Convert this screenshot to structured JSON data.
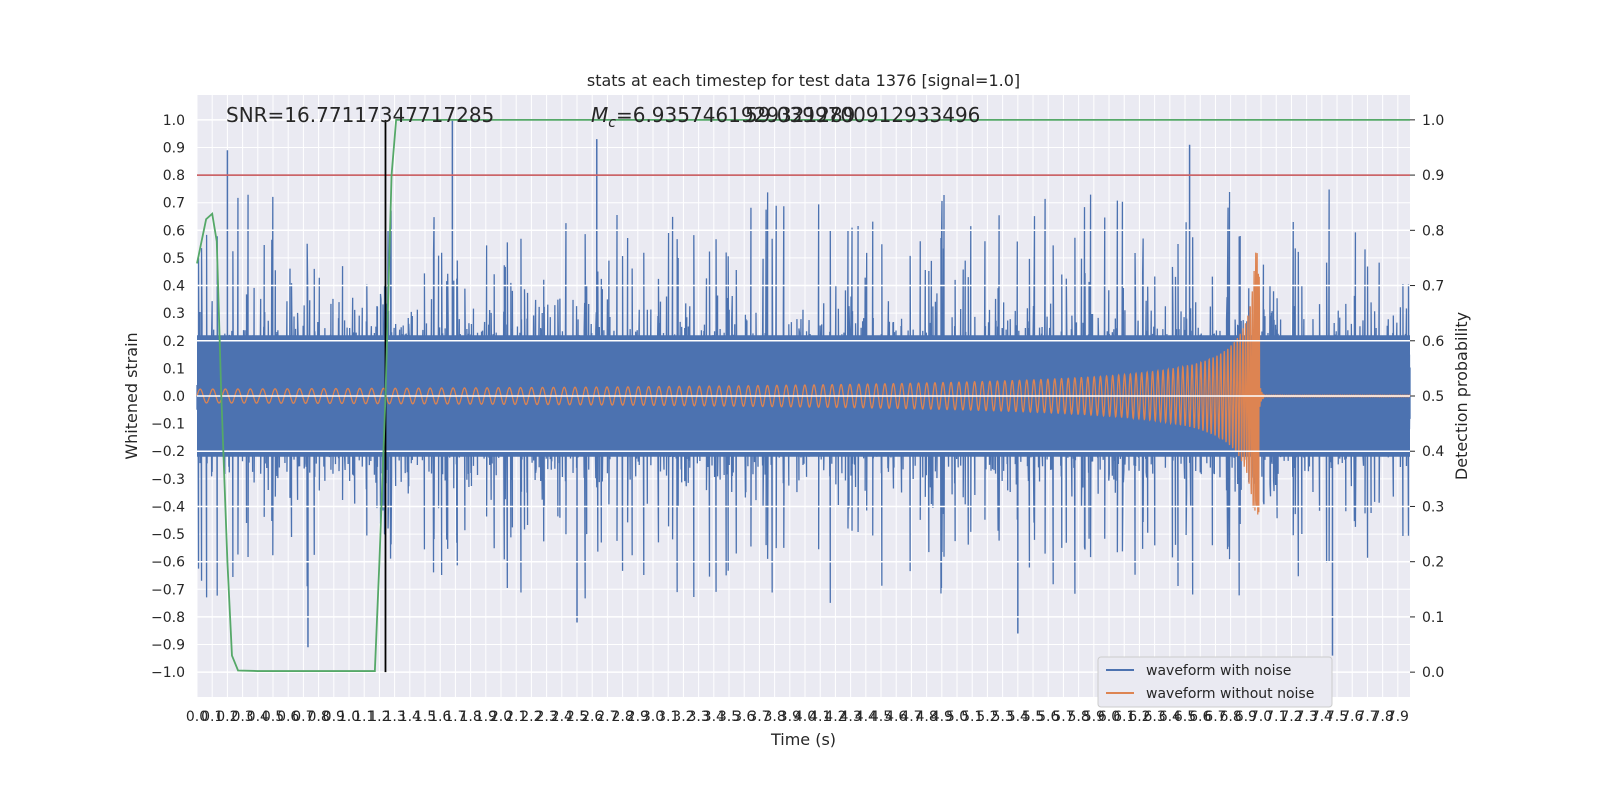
{
  "chart_data": {
    "type": "line",
    "title": "stats at each timestep for test data 1376 [signal=1.0]",
    "xlabel": "Time (s)",
    "ylabel": "Whitened strain",
    "y2label": "Detection probability",
    "xlim": [
      0.0,
      7.98
    ],
    "ylim": [
      -1.09,
      1.09
    ],
    "y2lim": [
      -0.045,
      1.045
    ],
    "x_ticks": [
      0.0,
      0.1,
      0.2,
      0.3,
      0.4,
      0.5,
      0.6,
      0.7,
      0.8,
      0.9,
      1.0,
      1.1,
      1.2,
      1.3,
      1.4,
      1.5,
      1.6,
      1.7,
      1.8,
      1.9,
      2.0,
      2.1,
      2.2,
      2.3,
      2.4,
      2.5,
      2.6,
      2.7,
      2.8,
      2.9,
      3.0,
      3.1,
      3.2,
      3.3,
      3.4,
      3.5,
      3.6,
      3.7,
      3.8,
      3.9,
      4.0,
      4.1,
      4.2,
      4.3,
      4.4,
      4.5,
      4.6,
      4.7,
      4.8,
      4.9,
      5.0,
      5.1,
      5.2,
      5.3,
      5.4,
      5.5,
      5.6,
      5.7,
      5.8,
      5.9,
      6.0,
      6.1,
      6.2,
      6.3,
      6.4,
      6.5,
      6.6,
      6.7,
      6.8,
      6.9,
      7.0,
      7.1,
      7.2,
      7.3,
      7.4,
      7.5,
      7.6,
      7.7,
      7.8,
      7.9
    ],
    "y_ticks": [
      -1.0,
      -0.9,
      -0.8,
      -0.7,
      -0.6,
      -0.5,
      -0.4,
      -0.3,
      -0.2,
      -0.1,
      0.0,
      0.1,
      0.2,
      0.3,
      0.4,
      0.5,
      0.6,
      0.7,
      0.8,
      0.9,
      1.0
    ],
    "y2_ticks": [
      0.0,
      0.1,
      0.2,
      0.3,
      0.4,
      0.5,
      0.6,
      0.7,
      0.8,
      0.9,
      1.0
    ],
    "annotations": {
      "snr": "SNR=16.77117347717285",
      "mc_prefix": "M",
      "mc_sub": "c",
      "mc_value": "=6.9357461929321289",
      "overlap_value": "59.039970091293349​6"
    },
    "threshold_line": {
      "y2": 0.9,
      "color": "#c44e52"
    },
    "detection_time_line": {
      "x": 1.24,
      "color": "#000000"
    },
    "series": [
      {
        "name": "waveform with noise",
        "color": "#4c72b0",
        "axis": "left",
        "kind": "noise",
        "envelope_typical": 0.45,
        "envelope_max": 1.0,
        "peaks": [
          {
            "x": 0.2,
            "y": 0.89
          },
          {
            "x": 1.68,
            "y": 1.0
          },
          {
            "x": 2.63,
            "y": 0.93
          },
          {
            "x": 6.53,
            "y": 0.91
          },
          {
            "x": 0.73,
            "y": -0.91
          },
          {
            "x": 7.47,
            "y": -0.94
          },
          {
            "x": 2.5,
            "y": -0.82
          },
          {
            "x": 5.4,
            "y": -0.86
          }
        ]
      },
      {
        "name": "waveform without noise",
        "color": "#dd8452",
        "axis": "left",
        "kind": "chirp",
        "start_amplitude": 0.025,
        "merger_time": 6.99,
        "peak_amplitude": 0.52,
        "min_amplitude": -0.43,
        "ringdown_end": 7.02
      },
      {
        "name": "detection probability",
        "color": "#55a868",
        "axis": "right",
        "x": [
          0.0,
          0.03,
          0.06,
          0.1,
          0.13,
          0.16,
          0.2,
          0.23,
          0.27,
          0.4,
          0.7,
          1.0,
          1.17,
          1.2,
          1.24,
          1.28,
          1.31,
          1.4,
          7.98
        ],
        "values": [
          0.74,
          0.78,
          0.82,
          0.83,
          0.78,
          0.5,
          0.2,
          0.03,
          0.003,
          0.002,
          0.002,
          0.002,
          0.002,
          0.2,
          0.5,
          0.9,
          1.0,
          1.0,
          1.0
        ]
      }
    ],
    "legend": {
      "position": "lower-right",
      "entries": [
        {
          "label": "waveform with noise",
          "color": "#4c72b0"
        },
        {
          "label": "waveform without noise",
          "color": "#dd8452"
        }
      ]
    },
    "grid": true,
    "background": "#eaeaf2"
  }
}
